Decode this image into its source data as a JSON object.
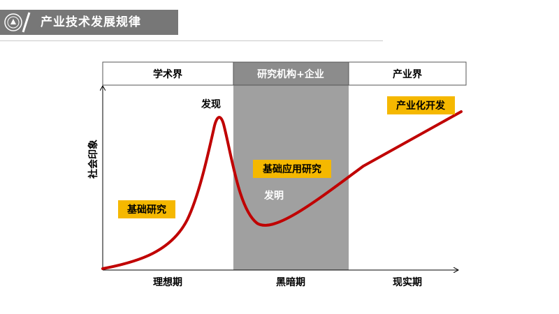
{
  "header": {
    "title": "产业技术发展规律"
  },
  "diagram": {
    "phases": [
      {
        "name": "学术界"
      },
      {
        "name": "研究机构+企业"
      },
      {
        "name": "产业界"
      }
    ],
    "stages": [
      "理想期",
      "黑暗期",
      "现实期"
    ],
    "y_axis_label": "社会印象",
    "annotations": {
      "discovery": "发现",
      "invention": "发明",
      "basic_research": "基础研究",
      "applied_research": "基础应用研究",
      "industrialization": "产业化开发"
    }
  },
  "colors": {
    "curve": "#c00000",
    "highlight": "#f5b800",
    "dark_zone": "#a0a0a0",
    "header": "#777777"
  }
}
